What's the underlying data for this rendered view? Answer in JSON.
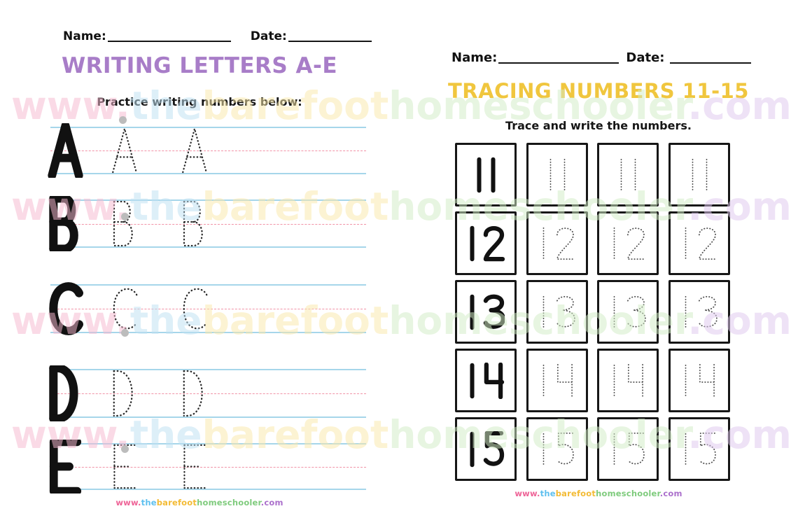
{
  "left_page": {
    "name_label": "Name:",
    "date_label": "Date:",
    "title": "WRITING LETTERS A-E",
    "title_color": "#a87dc8",
    "subtitle": "Practice writing numbers below:",
    "letters": [
      "A",
      "B",
      "C",
      "D",
      "E"
    ],
    "trace_repetitions": 2
  },
  "right_page": {
    "name_label": "Name:",
    "date_label": "Date:",
    "title": "TRACING NUMBERS 11-15",
    "title_color": "#f0c63e",
    "subtitle": "Trace and write the numbers.",
    "numbers": [
      "11",
      "12",
      "13",
      "14",
      "15"
    ],
    "solid_columns": 1,
    "trace_columns": 3
  },
  "watermark": {
    "text": "www.thebarefoothomeschooler.com",
    "rows": 4,
    "segments": [
      {
        "text": "www.",
        "color": "#f6b9d0"
      },
      {
        "text": "the",
        "color": "#bfe1f3"
      },
      {
        "text": "barefoot",
        "color": "#fbe9ab"
      },
      {
        "text": "homeschooler",
        "color": "#d3ecc6"
      },
      {
        "text": ".com",
        "color": "#dfc9ee"
      }
    ]
  },
  "footer_url": {
    "text": "www.thebarefoothomeschooler.com",
    "segments": [
      {
        "text": "www.",
        "color": "#ee6397"
      },
      {
        "text": "the",
        "color": "#5fc0ef"
      },
      {
        "text": "barefoot",
        "color": "#f3bb35"
      },
      {
        "text": "homeschooler",
        "color": "#7fcb7d"
      },
      {
        "text": ".com",
        "color": "#ab70cc"
      }
    ]
  },
  "colors": {
    "guide_line_blue": "#a6d6ea",
    "guide_line_pink": "#f192a6",
    "solid_ink": "#111111",
    "trace_ink": "#2a2a2a",
    "trace_number_ink": "#4f4f4f",
    "start_dot_gray": "#bcbcbc",
    "box_border": "#161616"
  }
}
